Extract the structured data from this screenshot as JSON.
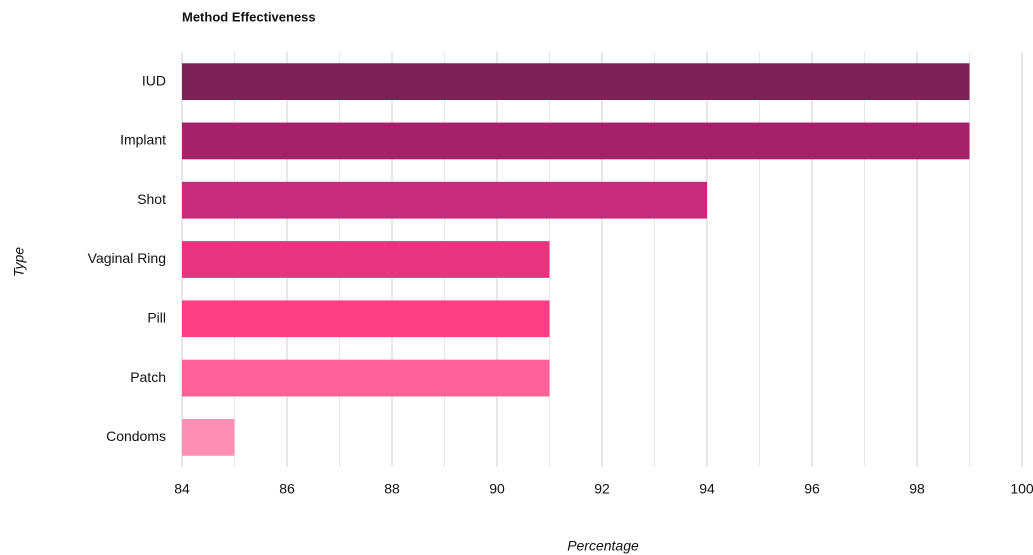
{
  "chart_data": {
    "type": "bar",
    "orientation": "horizontal",
    "title": "Method Effectiveness",
    "x_label": "Percentage",
    "y_label": "Type",
    "categories": [
      "IUD",
      "Implant",
      "Shot",
      "Vaginal Ring",
      "Pill",
      "Patch",
      "Condoms"
    ],
    "values": [
      99,
      99,
      94,
      91,
      91,
      91,
      85
    ],
    "colors": [
      "#7b2257",
      "#a4226a",
      "#c82b7b",
      "#e8337f",
      "#ff3f83",
      "#ff6298",
      "#ff8fb4"
    ],
    "xlim": [
      84,
      100
    ],
    "xticks": [
      84,
      86,
      88,
      90,
      92,
      94,
      96,
      98,
      100
    ],
    "xminorticks": [
      85,
      87,
      89,
      91,
      93,
      95,
      97,
      99
    ],
    "grid": true
  }
}
